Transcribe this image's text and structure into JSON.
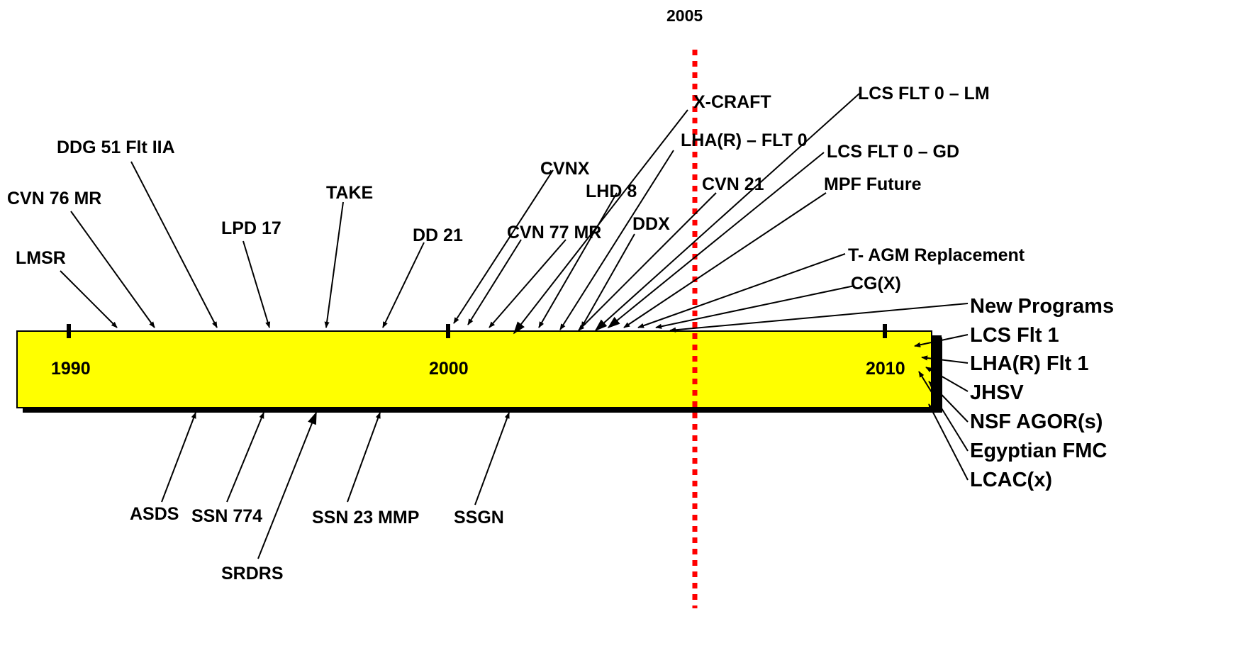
{
  "marker_year": "2005",
  "years": {
    "y1990": "1990",
    "y2000": "2000",
    "y2010": "2010"
  },
  "top_labels": {
    "lmsr": "LMSR",
    "cvn76": "CVN 76 MR",
    "ddg51": "DDG 51 Flt IIA",
    "lpd17": "LPD 17",
    "take": "TAKE",
    "dd21": "DD 21",
    "cvnx": "CVNX",
    "cvn77": "CVN 77 MR",
    "lhd8": "LHD 8",
    "xcraft": "X-CRAFT",
    "lhar0": "LHA(R) – FLT 0",
    "cvn21": "CVN 21",
    "ddx": "DDX",
    "lcslm": "LCS FLT 0 – LM",
    "lcsgd": "LCS FLT 0 – GD",
    "mpf": "MPF Future",
    "tagm": "T- AGM Replacement",
    "cgx": "CG(X)"
  },
  "right_labels": {
    "newprog": "New Programs",
    "lcsf1": "LCS Flt 1",
    "lharf1": "LHA(R) Flt 1",
    "jhsv": "JHSV",
    "nsf": "NSF AGOR(s)",
    "egypt": "Egyptian FMC",
    "lcac": "LCAC(x)"
  },
  "bottom_labels": {
    "asds": "ASDS",
    "ssn774": "SSN 774",
    "srdrs": "SRDRS",
    "ssn23": "SSN 23 MMP",
    "ssgn": "SSGN"
  },
  "colors": {
    "bar_fill": "#ffff00",
    "bar_shadow": "#000000",
    "marker_line": "#ff0000"
  }
}
